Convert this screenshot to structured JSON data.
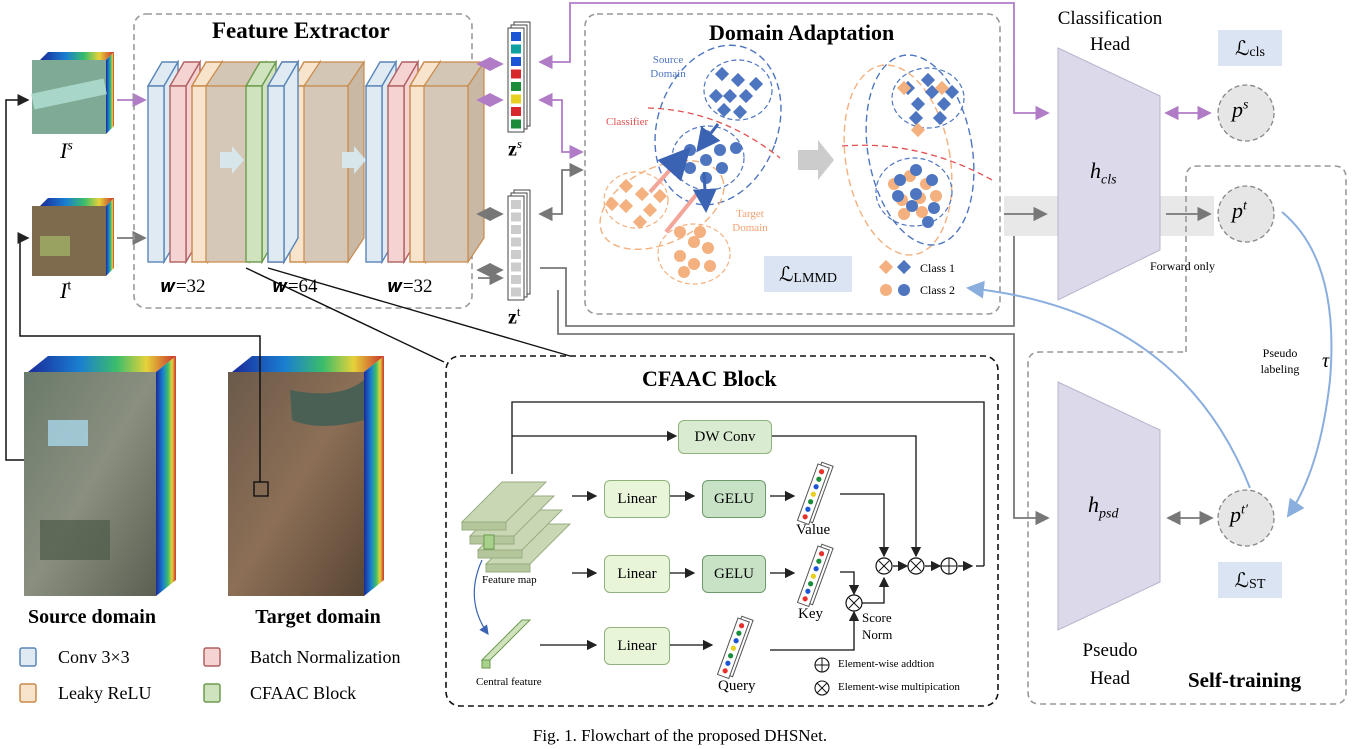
{
  "feature_extractor": {
    "title": "Feature Extractor",
    "widths": [
      "𝒘=32",
      "𝒘=64",
      "𝒘=32"
    ]
  },
  "inputs": {
    "source": "I",
    "source_sup": "s",
    "target": "I",
    "target_sup": "t"
  },
  "features": {
    "zs": "z",
    "zs_sup": "s",
    "zt": "z",
    "zt_sup": "t"
  },
  "domain_adaptation": {
    "title": "Domain Adaptation",
    "source_domain": [
      "Source",
      "Domain"
    ],
    "target_domain": [
      "Target",
      "Domain"
    ],
    "classifier": "Classifier",
    "loss": "ℒ",
    "loss_sub": "LMMD",
    "legend": [
      "Class 1",
      "Class 2"
    ]
  },
  "classification_head": {
    "title": [
      "Classification",
      "Head"
    ],
    "h": "h",
    "h_sub": "cls",
    "loss": "ℒ",
    "loss_sub": "cls",
    "ps": "p",
    "ps_sup": "s",
    "pt": "p",
    "pt_sup": "t",
    "forward_only": "Forward only"
  },
  "pseudo_head": {
    "title": [
      "Pseudo",
      "Head"
    ],
    "h": "h",
    "h_sub": "psd",
    "pt2": "p",
    "pt2_sup": "t′",
    "loss": "ℒ",
    "loss_sub": "ST",
    "self_training": "Self-training",
    "pseudo_labeling": [
      "Pseudo",
      "labeling"
    ],
    "tau": "τ"
  },
  "cfaac": {
    "title": "CFAAC Block",
    "dw_conv": "DW Conv",
    "linear": "Linear",
    "gelu": "GELU",
    "value": "Value",
    "key": "Key",
    "query": "Query",
    "score_norm": [
      "Score",
      "Norm"
    ],
    "feature_map": "Feature map",
    "central_feature": "Central feature",
    "add_legend": "Element-wise addtion",
    "mul_legend": "Element-wise multipication"
  },
  "domains": {
    "source": "Source domain",
    "target": "Target domain"
  },
  "legend": [
    "Conv 3×3",
    "Batch Normalization",
    "Leaky ReLU",
    "CFAAC Block"
  ],
  "colors": {
    "conv": "#dfeaf3",
    "conv_edge": "#5a86b8",
    "bn": "#f5d3d3",
    "bn_edge": "#b06060",
    "relu": "#f8e3cc",
    "relu_edge": "#c88a4a",
    "cfaac": "#cfe3bf",
    "cfaac_edge": "#6c9a4e",
    "purple": "#b07cc6",
    "blue": "#4e76c0",
    "orange": "#f4b07e",
    "loss_bg": "#dbe4f2",
    "head": "#dcd9ea"
  },
  "caption": "Fig. 1. Flowchart of the proposed DHSNet."
}
